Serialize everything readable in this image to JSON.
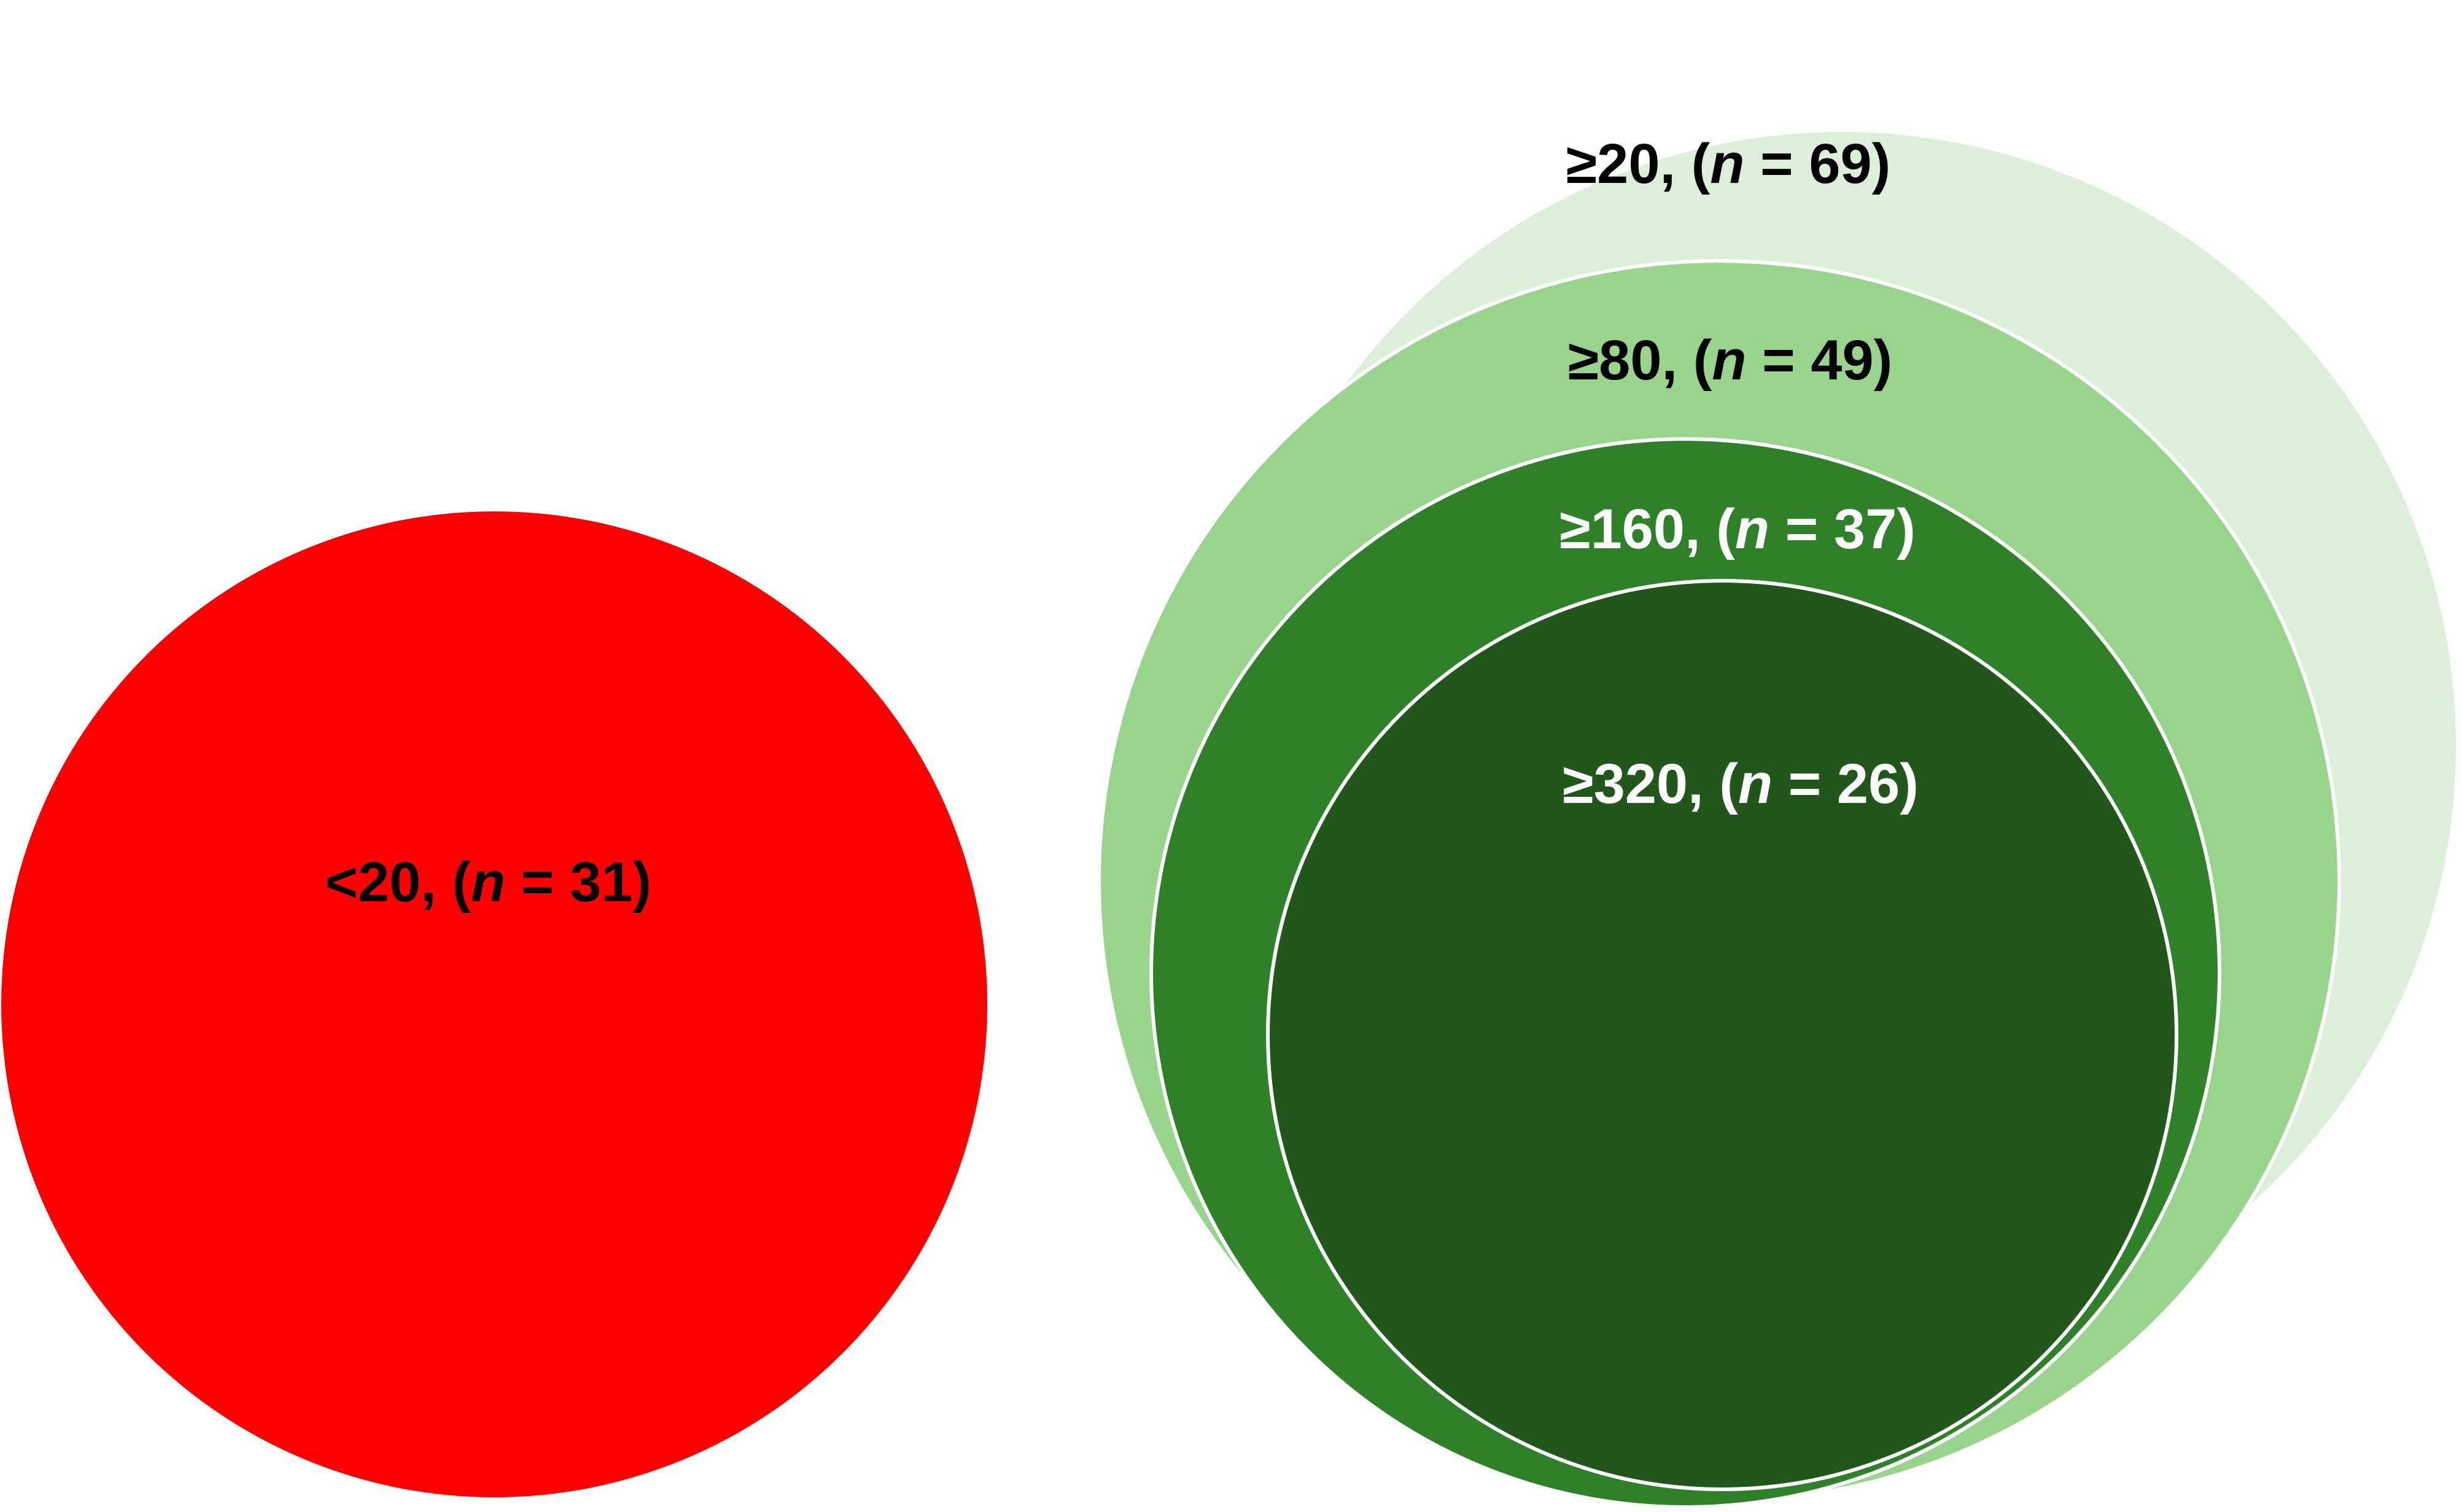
{
  "groups": [
    {
      "id": "lt20",
      "prefix": "<20, (",
      "n_symbol": "n",
      "suffix": " = 31)",
      "count": 31,
      "color": "#ff0000"
    },
    {
      "id": "ge20",
      "prefix": "≥20, (",
      "n_symbol": "n",
      "suffix": " = 69)",
      "count": 69,
      "color": "#dcefd9"
    },
    {
      "id": "ge80",
      "prefix": "≥80, (",
      "n_symbol": "n",
      "suffix": " = 49)",
      "count": 49,
      "color": "#98d48b"
    },
    {
      "id": "ge160",
      "prefix": "≥160, (",
      "n_symbol": "n",
      "suffix": " = 37)",
      "count": 37,
      "color": "#2e8129"
    },
    {
      "id": "ge320",
      "prefix": "≥320, (",
      "n_symbol": "n",
      "suffix": " = 26)",
      "count": 26,
      "color": "#21571a"
    }
  ]
}
